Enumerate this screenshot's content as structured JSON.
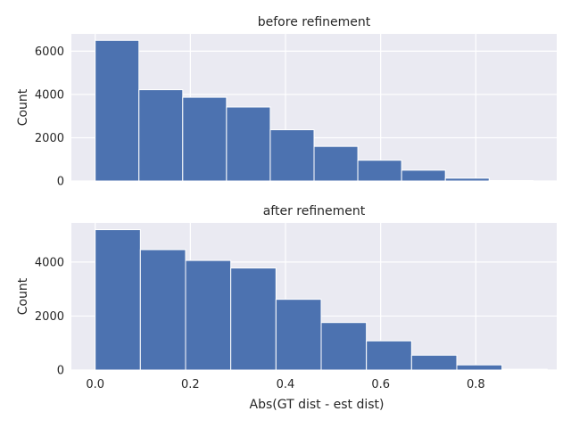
{
  "chart_data": [
    {
      "type": "bar",
      "title": "before refinement",
      "xlabel": "",
      "ylabel": "Count",
      "bin_edges": [
        0.0,
        0.092,
        0.184,
        0.276,
        0.368,
        0.46,
        0.552,
        0.644,
        0.736,
        0.828,
        0.92
      ],
      "values": [
        6500,
        4220,
        3870,
        3420,
        2370,
        1600,
        960,
        500,
        130,
        20
      ],
      "xlim": [
        -0.05,
        0.97
      ],
      "ylim": [
        0,
        6800
      ],
      "yticks": [
        0,
        2000,
        4000,
        6000
      ],
      "xticks": [
        0.0,
        0.2,
        0.4,
        0.6,
        0.8
      ],
      "show_xticklabels": false,
      "grid": true,
      "color": "#4c72b0"
    },
    {
      "type": "bar",
      "title": "after refinement",
      "xlabel": "Abs(GT dist - est dist)",
      "ylabel": "Count",
      "bin_edges": [
        0.0,
        0.095,
        0.19,
        0.285,
        0.38,
        0.475,
        0.57,
        0.665,
        0.76,
        0.855,
        0.95
      ],
      "values": [
        5200,
        4460,
        4060,
        3780,
        2620,
        1760,
        1080,
        550,
        190,
        30
      ],
      "xlim": [
        -0.05,
        0.97
      ],
      "ylim": [
        0,
        5450
      ],
      "yticks": [
        0,
        2000,
        4000
      ],
      "xticks": [
        0.0,
        0.2,
        0.4,
        0.6,
        0.8
      ],
      "show_xticklabels": true,
      "grid": true,
      "color": "#4c72b0"
    }
  ],
  "styles": {
    "axes_bg": "#eaeaf2",
    "grid": "#ffffff",
    "bar_edge": "#ffffff"
  }
}
